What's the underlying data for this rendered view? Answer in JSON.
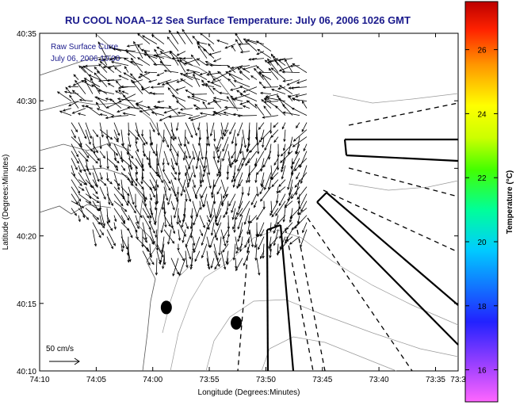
{
  "chart_data": {
    "type": "vector-field-map",
    "title": "RU COOL  NOAA–12  Sea Surface Temperature:  July 06, 2006 1026 GMT",
    "xlabel": "Longitude (Degrees:Minutes)",
    "ylabel": "Latitude (Degrees:Minutes)",
    "xlim": [
      -74.1667,
      -73.55
    ],
    "ylim": [
      40.1667,
      40.5833
    ],
    "x_ticks": [
      {
        "value": -74.1667,
        "label": "74:10"
      },
      {
        "value": -74.0833,
        "label": "74:05"
      },
      {
        "value": -74.0,
        "label": "74:00"
      },
      {
        "value": -73.9167,
        "label": "73:55"
      },
      {
        "value": -73.8333,
        "label": "73:50"
      },
      {
        "value": -73.75,
        "label": "73:45"
      },
      {
        "value": -73.6667,
        "label": "73:40"
      },
      {
        "value": -73.5833,
        "label": "73:35"
      },
      {
        "value": -73.55,
        "label": "73:3"
      }
    ],
    "y_ticks": [
      {
        "value": 40.1667,
        "label": "40:10"
      },
      {
        "value": 40.25,
        "label": "40:15"
      },
      {
        "value": 40.3333,
        "label": "40:20"
      },
      {
        "value": 40.4167,
        "label": "40:25"
      },
      {
        "value": 40.5,
        "label": "40:30"
      },
      {
        "value": 40.5833,
        "label": "40:35"
      }
    ],
    "overlay_text": [
      "Raw Surface Curre",
      "July 06, 2006 10:00"
    ],
    "scale_arrow_label": "50 cm/s",
    "colorbar": {
      "label": "Temperature (°C)",
      "range": [
        15,
        27.5
      ],
      "ticks": [
        16,
        18,
        20,
        22,
        24,
        26
      ]
    },
    "current_field": {
      "center": [
        -73.93,
        40.44
      ],
      "extent_lon": [
        -74.12,
        -73.77
      ],
      "extent_lat": [
        40.3,
        40.57
      ],
      "description": "southward flowing radial surface currents"
    },
    "markers": [
      {
        "lon": -73.98,
        "lat": 40.245
      },
      {
        "lon": -73.877,
        "lat": 40.226
      }
    ],
    "grid": false
  }
}
